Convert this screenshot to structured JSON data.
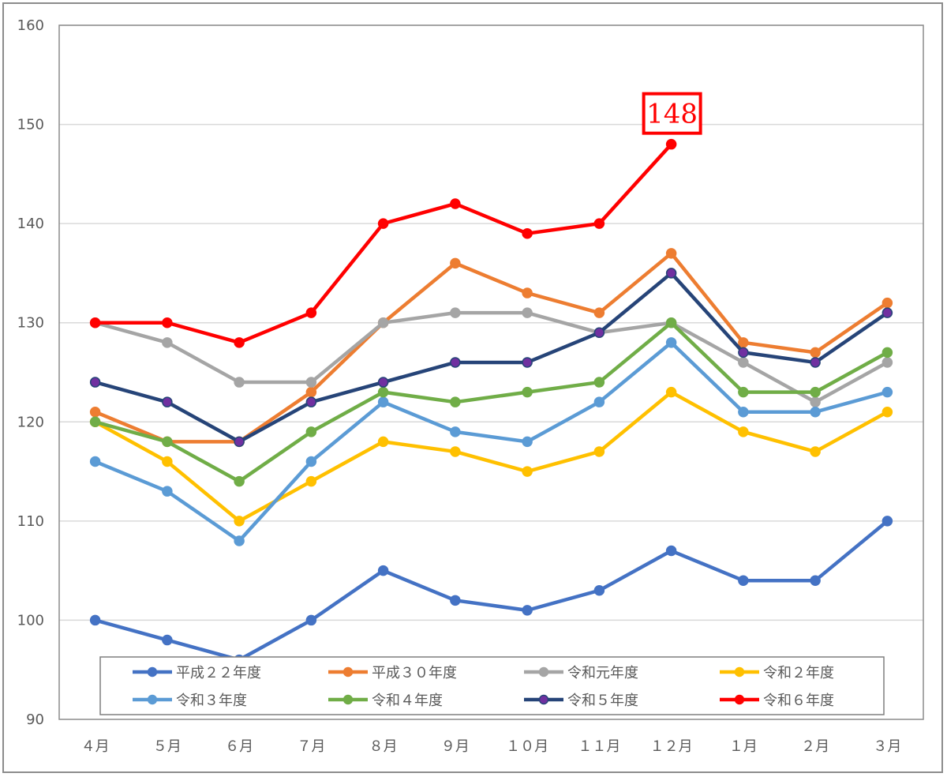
{
  "chart_data": {
    "type": "line",
    "categories": [
      "4月",
      "5月",
      "6月",
      "7月",
      "8月",
      "9月",
      "10月",
      "11月",
      "12月",
      "1月",
      "2月",
      "3月"
    ],
    "category_labels": [
      "４月",
      "５月",
      "６月",
      "７月",
      "８月",
      "９月",
      "１０月",
      "１１月",
      "１２月",
      "１月",
      "２月",
      "３月"
    ],
    "ylim": [
      90,
      160
    ],
    "yticks": [
      90,
      100,
      110,
      120,
      130,
      140,
      150,
      160
    ],
    "grid": true,
    "legend_position": "bottom",
    "series": [
      {
        "name": "平成２２年度",
        "color": "#4472c4",
        "values": [
          100,
          98,
          96,
          100,
          105,
          102,
          101,
          103,
          107,
          104,
          104,
          110
        ]
      },
      {
        "name": "平成３０年度",
        "color": "#ed7d31",
        "values": [
          121,
          118,
          118,
          123,
          130,
          136,
          133,
          131,
          137,
          128,
          127,
          132
        ]
      },
      {
        "name": "令和元年度",
        "color": "#a5a5a5",
        "values": [
          130,
          128,
          124,
          124,
          130,
          131,
          131,
          129,
          130,
          126,
          122,
          126
        ]
      },
      {
        "name": "令和２年度",
        "color": "#ffc000",
        "values": [
          120,
          116,
          110,
          114,
          118,
          117,
          115,
          117,
          123,
          119,
          117,
          121
        ]
      },
      {
        "name": "令和３年度",
        "color": "#5b9bd5",
        "values": [
          116,
          113,
          108,
          116,
          122,
          119,
          118,
          122,
          128,
          121,
          121,
          123
        ]
      },
      {
        "name": "令和４年度",
        "color": "#70ad47",
        "values": [
          120,
          118,
          114,
          119,
          123,
          122,
          123,
          124,
          130,
          123,
          123,
          127
        ]
      },
      {
        "name": "令和５年度",
        "color": "#264478",
        "marker_color": "#7030a0",
        "values": [
          124,
          122,
          118,
          122,
          124,
          126,
          126,
          129,
          135,
          127,
          126,
          131
        ]
      },
      {
        "name": "令和６年度",
        "color": "#ff0000",
        "values": [
          130,
          130,
          128,
          131,
          140,
          142,
          139,
          140,
          148,
          null,
          null,
          null
        ]
      }
    ],
    "annotations": [
      {
        "text": "148",
        "series": "令和６年度",
        "category": "12月",
        "color": "#ff0000"
      }
    ]
  }
}
